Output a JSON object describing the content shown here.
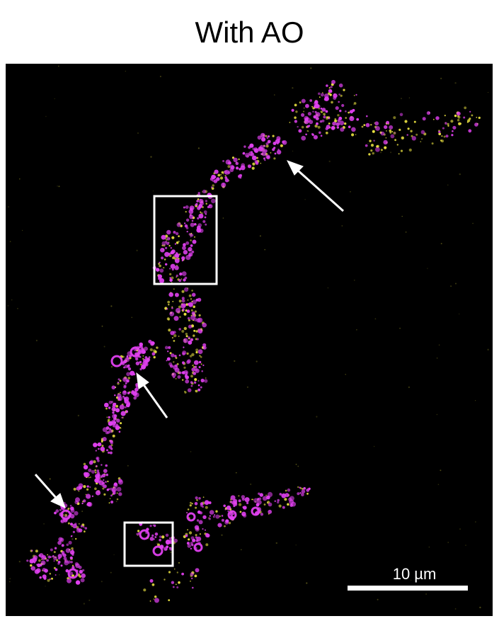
{
  "figure": {
    "title": "With AO",
    "scale_bar_label": "10 µm",
    "colors": {
      "background": "#000000",
      "channel_magenta": "#e040f0",
      "channel_yellow": "#e8e040",
      "annotation": "#ffffff"
    },
    "annotations": {
      "inset_box_count": 2,
      "arrow_count": 3
    }
  }
}
